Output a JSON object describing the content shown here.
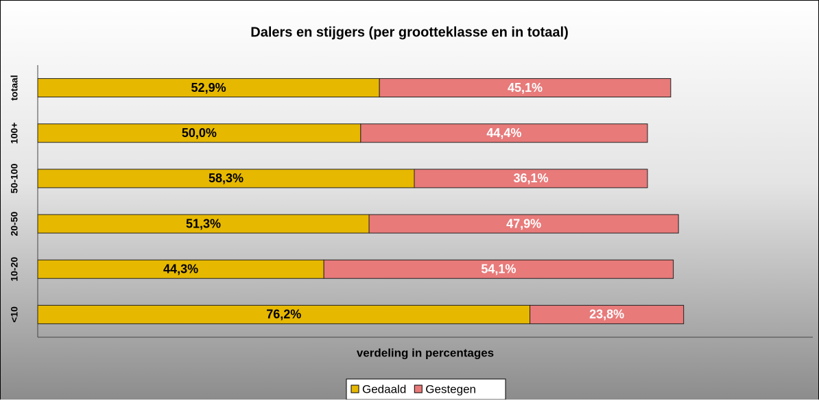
{
  "chart_data": {
    "type": "stacked-bar-horizontal",
    "title": "Dalers en stijgers (per grootteklasse en in totaal)",
    "x_label": "verdeling in percentages",
    "categories": [
      "<10",
      "10-20",
      "20-50",
      "50-100",
      "100+",
      "totaal"
    ],
    "series": [
      {
        "name": "Gedaald",
        "color": "#e6b800",
        "values": [
          76.2,
          44.3,
          51.3,
          58.3,
          50.0,
          52.9
        ],
        "value_labels": [
          "76,2%",
          "44,3%",
          "51,3%",
          "58,3%",
          "50,0%",
          "52,9%"
        ]
      },
      {
        "name": "Gestegen",
        "color": "#e87a7a",
        "values": [
          23.8,
          54.1,
          47.9,
          36.1,
          44.4,
          45.1
        ],
        "value_labels": [
          "23,8%",
          "54,1%",
          "47,9%",
          "36,1%",
          "44,4%",
          "45,1%"
        ]
      }
    ],
    "xlim": [
      0,
      120
    ],
    "legend": "bottom"
  }
}
